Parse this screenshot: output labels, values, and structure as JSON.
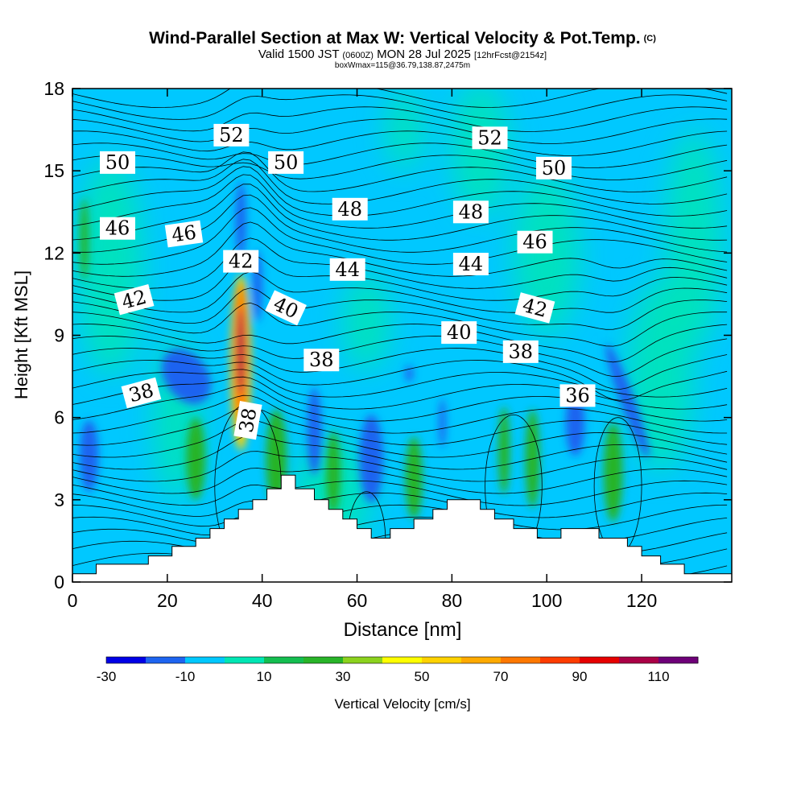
{
  "title": {
    "main": "Wind-Parallel Section at Max W: Vertical Velocity & Pot.Temp.",
    "copyright": "(C)",
    "valid_prefix": "Valid 1500 JST",
    "valid_utc": "(0600Z)",
    "valid_date": "MON 28 Jul 2025",
    "forecast": "[12hrFcst@2154z]",
    "box_info": "boxWmax=115@36.79,138.87,2475m"
  },
  "chart_data": {
    "type": "heatmap",
    "xlabel": "Distance [nm]",
    "ylabel": "Height [Kft MSL]",
    "xlim": [
      0,
      139
    ],
    "ylim": [
      0,
      18
    ],
    "x_ticks": [
      0,
      20,
      40,
      60,
      80,
      100,
      120
    ],
    "y_ticks": [
      0,
      3,
      6,
      9,
      12,
      15,
      18
    ],
    "colorbar": {
      "label": "Vertical Velocity [cm/s]",
      "min": -30,
      "max": 120,
      "step": 10,
      "tick_values": [
        -30,
        -10,
        10,
        30,
        50,
        70,
        90,
        110
      ],
      "colors": [
        "#0000e6",
        "#1e64f0",
        "#00c8ff",
        "#00e6b4",
        "#14be50",
        "#28b428",
        "#8cd21e",
        "#ffff00",
        "#ffd200",
        "#ffaa00",
        "#ff7800",
        "#ff3c00",
        "#e60000",
        "#aa0046",
        "#6e0078"
      ]
    },
    "terrain": [
      [
        0,
        0.3
      ],
      [
        5,
        0.3
      ],
      [
        5,
        0.65
      ],
      [
        16,
        0.65
      ],
      [
        16,
        0.95
      ],
      [
        21,
        0.95
      ],
      [
        21,
        1.3
      ],
      [
        26,
        1.3
      ],
      [
        26,
        1.6
      ],
      [
        29,
        1.6
      ],
      [
        29,
        1.95
      ],
      [
        32,
        1.95
      ],
      [
        32,
        2.3
      ],
      [
        35,
        2.3
      ],
      [
        35,
        2.65
      ],
      [
        38,
        2.65
      ],
      [
        38,
        3.0
      ],
      [
        41,
        3.0
      ],
      [
        41,
        3.4
      ],
      [
        44,
        3.4
      ],
      [
        44,
        3.9
      ],
      [
        47,
        3.9
      ],
      [
        47,
        3.4
      ],
      [
        51,
        3.4
      ],
      [
        51,
        3.0
      ],
      [
        54,
        3.0
      ],
      [
        54,
        2.65
      ],
      [
        57,
        2.65
      ],
      [
        57,
        2.3
      ],
      [
        60,
        2.3
      ],
      [
        60,
        1.95
      ],
      [
        63,
        1.95
      ],
      [
        63,
        1.6
      ],
      [
        67,
        1.6
      ],
      [
        67,
        1.95
      ],
      [
        72,
        1.95
      ],
      [
        72,
        2.3
      ],
      [
        76,
        2.3
      ],
      [
        76,
        2.65
      ],
      [
        79,
        2.65
      ],
      [
        79,
        3.0
      ],
      [
        86,
        3.0
      ],
      [
        86,
        2.65
      ],
      [
        89,
        2.65
      ],
      [
        89,
        2.3
      ],
      [
        93,
        2.3
      ],
      [
        93,
        1.95
      ],
      [
        98,
        1.95
      ],
      [
        98,
        1.6
      ],
      [
        103,
        1.6
      ],
      [
        103,
        1.95
      ],
      [
        111,
        1.95
      ],
      [
        111,
        1.6
      ],
      [
        117,
        1.6
      ],
      [
        117,
        1.3
      ],
      [
        120,
        1.3
      ],
      [
        120,
        0.95
      ],
      [
        124,
        0.95
      ],
      [
        124,
        0.65
      ],
      [
        129,
        0.65
      ],
      [
        129,
        0.3
      ],
      [
        139,
        0.3
      ]
    ],
    "w_features": [
      {
        "x": 35.5,
        "y": 8.0,
        "rx": 2.2,
        "ry": 3.2,
        "w": 50,
        "rot": 0
      },
      {
        "x": 35.5,
        "y": 8.3,
        "rx": 1.5,
        "ry": 2.6,
        "w": 75,
        "rot": 0
      },
      {
        "x": 35.5,
        "y": 8.4,
        "rx": 0.8,
        "ry": 1.6,
        "w": 105,
        "rot": 0
      },
      {
        "x": 24,
        "y": 7.5,
        "rx": 4.5,
        "ry": 1.1,
        "w": -15,
        "rot": -35
      },
      {
        "x": 35.5,
        "y": 13.2,
        "rx": 1.1,
        "ry": 1.4,
        "w": -15,
        "rot": 0
      },
      {
        "x": 39,
        "y": 10.8,
        "rx": 1.0,
        "ry": 1.3,
        "w": -15,
        "rot": 0
      },
      {
        "x": 3.5,
        "y": 4.6,
        "rx": 2.0,
        "ry": 1.3,
        "w": -15,
        "rot": 0
      },
      {
        "x": 51,
        "y": 5.5,
        "rx": 1.5,
        "ry": 1.6,
        "w": -15,
        "rot": 0
      },
      {
        "x": 63,
        "y": 4.5,
        "rx": 2.5,
        "ry": 1.6,
        "w": -15,
        "rot": 0
      },
      {
        "x": 78,
        "y": 5.8,
        "rx": 0.7,
        "ry": 0.9,
        "w": -15,
        "rot": 0
      },
      {
        "x": 71,
        "y": 7.6,
        "rx": 0.8,
        "ry": 0.3,
        "w": -15,
        "rot": 0
      },
      {
        "x": 106,
        "y": 5.8,
        "rx": 2.0,
        "ry": 1.2,
        "w": -15,
        "rot": 0
      },
      {
        "x": 117,
        "y": 6.6,
        "rx": 1.5,
        "ry": 2.2,
        "w": -15,
        "rot": -20
      },
      {
        "x": 2.5,
        "y": 12.5,
        "rx": 0.9,
        "ry": 1.5,
        "w": 20,
        "rot": 0
      },
      {
        "x": 26,
        "y": 4.5,
        "rx": 2.0,
        "ry": 1.5,
        "w": 20,
        "rot": 0
      },
      {
        "x": 43,
        "y": 4.5,
        "rx": 2.2,
        "ry": 1.8,
        "w": 20,
        "rot": 0
      },
      {
        "x": 55,
        "y": 4.0,
        "rx": 1.5,
        "ry": 1.5,
        "w": 20,
        "rot": 0
      },
      {
        "x": 72,
        "y": 3.8,
        "rx": 1.8,
        "ry": 1.5,
        "w": 20,
        "rot": 0
      },
      {
        "x": 91,
        "y": 4.8,
        "rx": 1.2,
        "ry": 1.6,
        "w": 20,
        "rot": 0
      },
      {
        "x": 97,
        "y": 4.5,
        "rx": 1.5,
        "ry": 1.8,
        "w": 25,
        "rot": 0
      },
      {
        "x": 114,
        "y": 4.0,
        "rx": 2.0,
        "ry": 1.8,
        "w": 20,
        "rot": 0
      }
    ],
    "contour_labels": [
      {
        "text": "52",
        "x": 33.5,
        "y": 16.3,
        "rot": 0
      },
      {
        "text": "52",
        "x": 88,
        "y": 16.2,
        "rot": 0
      },
      {
        "text": "50",
        "x": 9.5,
        "y": 15.3,
        "rot": 0
      },
      {
        "text": "50",
        "x": 45,
        "y": 15.3,
        "rot": 0
      },
      {
        "text": "50",
        "x": 101.5,
        "y": 15.1,
        "rot": 0
      },
      {
        "text": "48",
        "x": 58.5,
        "y": 13.6,
        "rot": 0
      },
      {
        "text": "48",
        "x": 84,
        "y": 13.5,
        "rot": 0
      },
      {
        "text": "46",
        "x": 9.5,
        "y": 12.9,
        "rot": 0
      },
      {
        "text": "46",
        "x": 23.5,
        "y": 12.7,
        "rot": -8
      },
      {
        "text": "46",
        "x": 97.5,
        "y": 12.4,
        "rot": 0
      },
      {
        "text": "42",
        "x": 35.5,
        "y": 11.7,
        "rot": 0
      },
      {
        "text": "44",
        "x": 58,
        "y": 11.4,
        "rot": 0
      },
      {
        "text": "44",
        "x": 84,
        "y": 11.6,
        "rot": 0
      },
      {
        "text": "42",
        "x": 13,
        "y": 10.3,
        "rot": -15
      },
      {
        "text": "40",
        "x": 45,
        "y": 10.0,
        "rot": 25
      },
      {
        "text": "42",
        "x": 97.5,
        "y": 10.0,
        "rot": 15
      },
      {
        "text": "40",
        "x": 81.5,
        "y": 9.1,
        "rot": 0
      },
      {
        "text": "38",
        "x": 52.5,
        "y": 8.1,
        "rot": 0
      },
      {
        "text": "38",
        "x": 94.5,
        "y": 8.4,
        "rot": 0
      },
      {
        "text": "38",
        "x": 14.5,
        "y": 6.9,
        "rot": -15
      },
      {
        "text": "36",
        "x": 106.5,
        "y": 6.8,
        "rot": 0
      },
      {
        "text": "38",
        "x": 37,
        "y": 5.9,
        "rot": -80
      }
    ]
  }
}
